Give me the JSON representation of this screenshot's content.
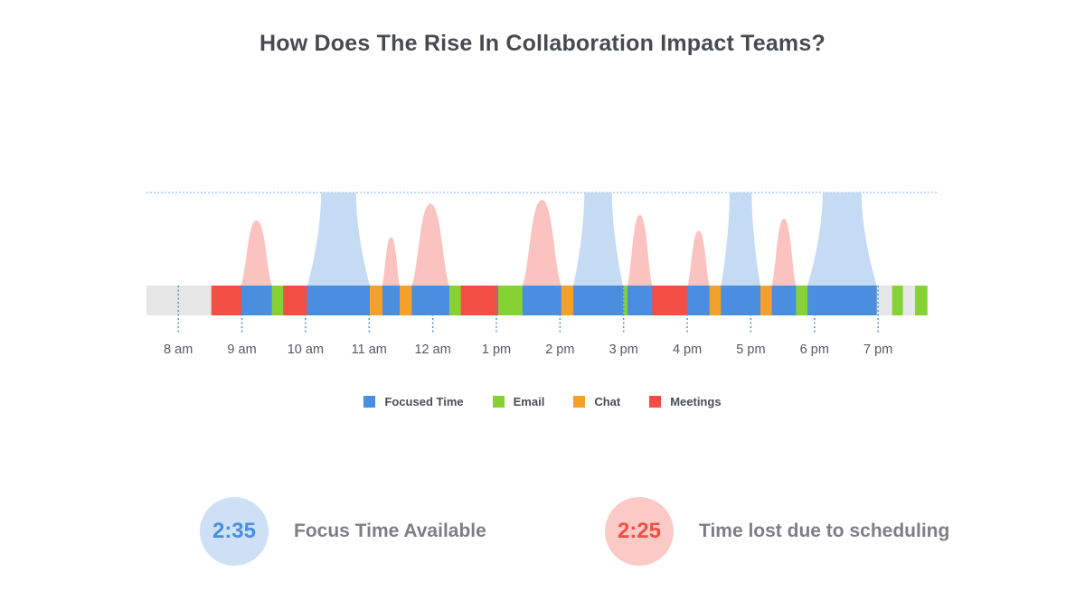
{
  "title": "How Does The Rise In Collaboration Impact Teams?",
  "colors": {
    "focused": "#4a8ee0",
    "email": "#86d232",
    "chat": "#f3a12a",
    "meetings": "#f24e43",
    "idle": "#e6e6e6",
    "peak_blue": "#c5daf3",
    "peak_red": "#fbc3bf",
    "tick": "#4a8ee0"
  },
  "legend": [
    {
      "key": "focused",
      "label": "Focused Time"
    },
    {
      "key": "email",
      "label": "Email"
    },
    {
      "key": "chat",
      "label": "Chat"
    },
    {
      "key": "meetings",
      "label": "Meetings"
    }
  ],
  "stats": {
    "focus": {
      "value": "2:35",
      "label": "Focus Time Available",
      "text_color": "#4a8ee0",
      "bg_color": "#cde0f5"
    },
    "lost": {
      "value": "2:25",
      "label": "Time lost due to scheduling",
      "text_color": "#f24e43",
      "bg_color": "#fbcac6"
    }
  },
  "chart_data": {
    "type": "timeline",
    "x_axis": {
      "ticks": [
        {
          "label": "8 am",
          "hour": 8
        },
        {
          "label": "9 am",
          "hour": 9
        },
        {
          "label": "10 am",
          "hour": 10
        },
        {
          "label": "11 am",
          "hour": 11
        },
        {
          "label": "12 am",
          "hour": 12
        },
        {
          "label": "1 pm",
          "hour": 13
        },
        {
          "label": "2 pm",
          "hour": 14
        },
        {
          "label": "3 pm",
          "hour": 15
        },
        {
          "label": "4 pm",
          "hour": 16
        },
        {
          "label": "5 pm",
          "hour": 17
        },
        {
          "label": "6 pm",
          "hour": 18
        },
        {
          "label": "7 pm",
          "hour": 19
        }
      ],
      "range": [
        7.5,
        19.95
      ]
    },
    "segments": [
      {
        "start": 7.5,
        "end": 8.52,
        "type": "idle"
      },
      {
        "start": 8.52,
        "end": 8.99,
        "type": "meetings"
      },
      {
        "start": 8.99,
        "end": 9.47,
        "type": "focused"
      },
      {
        "start": 9.47,
        "end": 9.65,
        "type": "email"
      },
      {
        "start": 9.65,
        "end": 10.03,
        "type": "meetings"
      },
      {
        "start": 10.03,
        "end": 11.01,
        "type": "focused"
      },
      {
        "start": 11.01,
        "end": 11.21,
        "type": "chat"
      },
      {
        "start": 11.21,
        "end": 11.48,
        "type": "focused"
      },
      {
        "start": 11.48,
        "end": 11.67,
        "type": "chat"
      },
      {
        "start": 11.67,
        "end": 12.26,
        "type": "focused"
      },
      {
        "start": 12.26,
        "end": 12.44,
        "type": "email"
      },
      {
        "start": 12.44,
        "end": 13.03,
        "type": "meetings"
      },
      {
        "start": 13.03,
        "end": 13.41,
        "type": "email"
      },
      {
        "start": 13.41,
        "end": 14.02,
        "type": "focused"
      },
      {
        "start": 14.02,
        "end": 14.21,
        "type": "chat"
      },
      {
        "start": 14.21,
        "end": 14.99,
        "type": "focused"
      },
      {
        "start": 14.99,
        "end": 15.06,
        "type": "email"
      },
      {
        "start": 15.06,
        "end": 15.45,
        "type": "focused"
      },
      {
        "start": 15.45,
        "end": 16.01,
        "type": "meetings"
      },
      {
        "start": 16.01,
        "end": 16.35,
        "type": "focused"
      },
      {
        "start": 16.35,
        "end": 16.53,
        "type": "chat"
      },
      {
        "start": 16.53,
        "end": 17.15,
        "type": "focused"
      },
      {
        "start": 17.15,
        "end": 17.33,
        "type": "chat"
      },
      {
        "start": 17.33,
        "end": 17.71,
        "type": "focused"
      },
      {
        "start": 17.71,
        "end": 17.89,
        "type": "email"
      },
      {
        "start": 17.89,
        "end": 18.98,
        "type": "focused"
      },
      {
        "start": 18.98,
        "end": 19.22,
        "type": "idle"
      },
      {
        "start": 19.22,
        "end": 19.39,
        "type": "email"
      },
      {
        "start": 19.39,
        "end": 19.58,
        "type": "idle"
      },
      {
        "start": 19.58,
        "end": 19.77,
        "type": "email"
      }
    ],
    "peaks": [
      {
        "type": "meetings",
        "start": 8.99,
        "end": 9.47,
        "height": 0.7
      },
      {
        "type": "focused",
        "start": 10.03,
        "end": 11.01,
        "height": 1.0
      },
      {
        "type": "meetings",
        "start": 11.21,
        "end": 11.48,
        "height": 0.52
      },
      {
        "type": "meetings",
        "start": 11.67,
        "end": 12.26,
        "height": 0.88
      },
      {
        "type": "meetings",
        "start": 13.41,
        "end": 14.02,
        "height": 0.92
      },
      {
        "type": "focused",
        "start": 14.21,
        "end": 14.99,
        "height": 1.0
      },
      {
        "type": "meetings",
        "start": 15.06,
        "end": 15.45,
        "height": 0.76
      },
      {
        "type": "meetings",
        "start": 16.01,
        "end": 16.35,
        "height": 0.59
      },
      {
        "type": "focused",
        "start": 16.53,
        "end": 17.15,
        "height": 1.0
      },
      {
        "type": "meetings",
        "start": 17.33,
        "end": 17.71,
        "height": 0.72
      },
      {
        "type": "focused",
        "start": 17.89,
        "end": 18.98,
        "height": 1.0
      }
    ]
  }
}
